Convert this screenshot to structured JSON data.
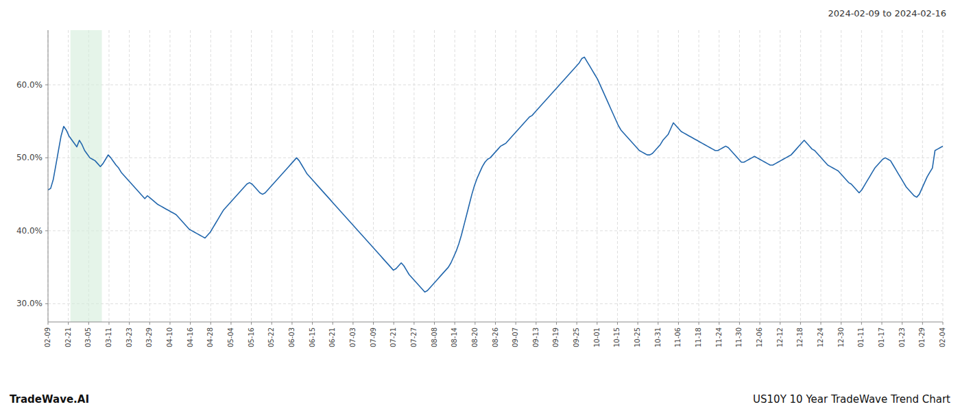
{
  "chart_data": {
    "type": "line",
    "title": "2024-02-09 to 2024-02-16",
    "annotations": [
      "TradeWave.AI",
      "US10Y 10 Year TradeWave Trend Chart"
    ],
    "color": "#2166ac",
    "grid": true,
    "span": {
      "start": 8.575,
      "end": 20.58,
      "color": "#d4edda"
    },
    "ylim": [
      0.275,
      0.675
    ],
    "yticks": [
      {
        "value": 0.3,
        "label": "30.0%"
      },
      {
        "value": 0.4,
        "label": "40.0%"
      },
      {
        "value": 0.5,
        "label": "50.0%"
      },
      {
        "value": 0.6,
        "label": "60.0%"
      }
    ],
    "xlim": [
      0,
      342
    ],
    "xticks": [
      {
        "value": 0,
        "label": "02-09"
      },
      {
        "value": 7.772727,
        "label": "02-21"
      },
      {
        "value": 15.545455,
        "label": "03-05"
      },
      {
        "value": 23.318182,
        "label": "03-11"
      },
      {
        "value": 31.090909,
        "label": "03-23"
      },
      {
        "value": 38.863636,
        "label": "03-29"
      },
      {
        "value": 46.636364,
        "label": "04-10"
      },
      {
        "value": 54.409091,
        "label": "04-16"
      },
      {
        "value": 62.181818,
        "label": "04-28"
      },
      {
        "value": 69.954545,
        "label": "05-04"
      },
      {
        "value": 77.727273,
        "label": "05-16"
      },
      {
        "value": 85.5,
        "label": "05-22"
      },
      {
        "value": 93.272727,
        "label": "06-03"
      },
      {
        "value": 101.045455,
        "label": "06-15"
      },
      {
        "value": 108.818182,
        "label": "06-21"
      },
      {
        "value": 116.590909,
        "label": "07-03"
      },
      {
        "value": 124.363636,
        "label": "07-09"
      },
      {
        "value": 132.136364,
        "label": "07-21"
      },
      {
        "value": 139.909091,
        "label": "07-27"
      },
      {
        "value": 147.681818,
        "label": "08-08"
      },
      {
        "value": 155.454545,
        "label": "08-14"
      },
      {
        "value": 163.227273,
        "label": "08-20"
      },
      {
        "value": 171,
        "label": "08-26"
      },
      {
        "value": 178.772727,
        "label": "09-07"
      },
      {
        "value": 186.545455,
        "label": "09-13"
      },
      {
        "value": 194.318182,
        "label": "09-19"
      },
      {
        "value": 202.090909,
        "label": "09-25"
      },
      {
        "value": 209.863636,
        "label": "10-01"
      },
      {
        "value": 217.636364,
        "label": "10-15"
      },
      {
        "value": 225.409091,
        "label": "10-25"
      },
      {
        "value": 233.181818,
        "label": "10-31"
      },
      {
        "value": 240.954545,
        "label": "11-06"
      },
      {
        "value": 248.727273,
        "label": "11-18"
      },
      {
        "value": 256.5,
        "label": "11-24"
      },
      {
        "value": 264.272727,
        "label": "11-30"
      },
      {
        "value": 272.045455,
        "label": "12-06"
      },
      {
        "value": 279.818182,
        "label": "12-12"
      },
      {
        "value": 287.590909,
        "label": "12-18"
      },
      {
        "value": 295.363636,
        "label": "12-24"
      },
      {
        "value": 303.136364,
        "label": "12-30"
      },
      {
        "value": 310.909091,
        "label": "01-11"
      },
      {
        "value": 318.681818,
        "label": "01-17"
      },
      {
        "value": 326.454545,
        "label": "01-23"
      },
      {
        "value": 334.227273,
        "label": "01-29"
      },
      {
        "value": 342,
        "label": "02-04"
      }
    ],
    "values": [
      0.456,
      0.458,
      0.47,
      0.49,
      0.51,
      0.53,
      0.543,
      0.538,
      0.53,
      0.525,
      0.52,
      0.515,
      0.524,
      0.518,
      0.51,
      0.505,
      0.5,
      0.498,
      0.496,
      0.492,
      0.488,
      0.492,
      0.498,
      0.504,
      0.5,
      0.495,
      0.49,
      0.486,
      0.48,
      0.476,
      0.472,
      0.468,
      0.464,
      0.46,
      0.456,
      0.452,
      0.448,
      0.444,
      0.448,
      0.445,
      0.442,
      0.439,
      0.436,
      0.434,
      0.432,
      0.43,
      0.428,
      0.426,
      0.424,
      0.422,
      0.418,
      0.414,
      0.41,
      0.406,
      0.402,
      0.4,
      0.398,
      0.396,
      0.394,
      0.392,
      0.39,
      0.394,
      0.398,
      0.404,
      0.41,
      0.416,
      0.422,
      0.428,
      0.432,
      0.436,
      0.44,
      0.444,
      0.448,
      0.452,
      0.456,
      0.46,
      0.464,
      0.466,
      0.464,
      0.46,
      0.456,
      0.452,
      0.45,
      0.452,
      0.456,
      0.46,
      0.464,
      0.468,
      0.472,
      0.476,
      0.48,
      0.484,
      0.488,
      0.492,
      0.496,
      0.5,
      0.496,
      0.49,
      0.484,
      0.478,
      0.474,
      0.47,
      0.466,
      0.462,
      0.458,
      0.454,
      0.45,
      0.446,
      0.442,
      0.438,
      0.434,
      0.43,
      0.426,
      0.422,
      0.418,
      0.414,
      0.41,
      0.406,
      0.402,
      0.398,
      0.394,
      0.39,
      0.386,
      0.382,
      0.378,
      0.374,
      0.37,
      0.366,
      0.362,
      0.358,
      0.354,
      0.35,
      0.346,
      0.348,
      0.352,
      0.356,
      0.352,
      0.346,
      0.34,
      0.336,
      0.332,
      0.328,
      0.324,
      0.32,
      0.316,
      0.318,
      0.322,
      0.326,
      0.33,
      0.334,
      0.338,
      0.342,
      0.346,
      0.35,
      0.356,
      0.364,
      0.372,
      0.382,
      0.394,
      0.408,
      0.422,
      0.436,
      0.45,
      0.462,
      0.472,
      0.48,
      0.488,
      0.494,
      0.498,
      0.5,
      0.504,
      0.508,
      0.512,
      0.516,
      0.518,
      0.52,
      0.524,
      0.528,
      0.532,
      0.536,
      0.54,
      0.544,
      0.548,
      0.552,
      0.556,
      0.558,
      0.562,
      0.566,
      0.57,
      0.574,
      0.578,
      0.582,
      0.586,
      0.59,
      0.594,
      0.598,
      0.602,
      0.606,
      0.61,
      0.614,
      0.618,
      0.622,
      0.626,
      0.63,
      0.636,
      0.638,
      0.632,
      0.626,
      0.62,
      0.614,
      0.608,
      0.6,
      0.592,
      0.584,
      0.576,
      0.568,
      0.56,
      0.552,
      0.544,
      0.538,
      0.534,
      0.53,
      0.526,
      0.522,
      0.518,
      0.514,
      0.51,
      0.508,
      0.506,
      0.504,
      0.504,
      0.506,
      0.51,
      0.514,
      0.518,
      0.524,
      0.528,
      0.532,
      0.54,
      0.548,
      0.544,
      0.54,
      0.536,
      0.534,
      0.532,
      0.53,
      0.528,
      0.526,
      0.524,
      0.522,
      0.52,
      0.518,
      0.516,
      0.514,
      0.512,
      0.51,
      0.51,
      0.512,
      0.514,
      0.516,
      0.514,
      0.51,
      0.506,
      0.502,
      0.498,
      0.494,
      0.494,
      0.496,
      0.498,
      0.5,
      0.502,
      0.5,
      0.498,
      0.496,
      0.494,
      0.492,
      0.49,
      0.49,
      0.492,
      0.494,
      0.496,
      0.498,
      0.5,
      0.502,
      0.504,
      0.508,
      0.512,
      0.516,
      0.52,
      0.524,
      0.52,
      0.516,
      0.512,
      0.51,
      0.506,
      0.502,
      0.498,
      0.494,
      0.49,
      0.488,
      0.486,
      0.484,
      0.482,
      0.478,
      0.474,
      0.47,
      0.466,
      0.464,
      0.46,
      0.456,
      0.452,
      0.456,
      0.462,
      0.468,
      0.474,
      0.48,
      0.486,
      0.49,
      0.494,
      0.498,
      0.5,
      0.498,
      0.496,
      0.49,
      0.484,
      0.478,
      0.472,
      0.466,
      0.46,
      0.456,
      0.452,
      0.448,
      0.446,
      0.45,
      0.458,
      0.466,
      0.474,
      0.48,
      0.486,
      0.51,
      0.512,
      0.514,
      0.516
    ]
  }
}
